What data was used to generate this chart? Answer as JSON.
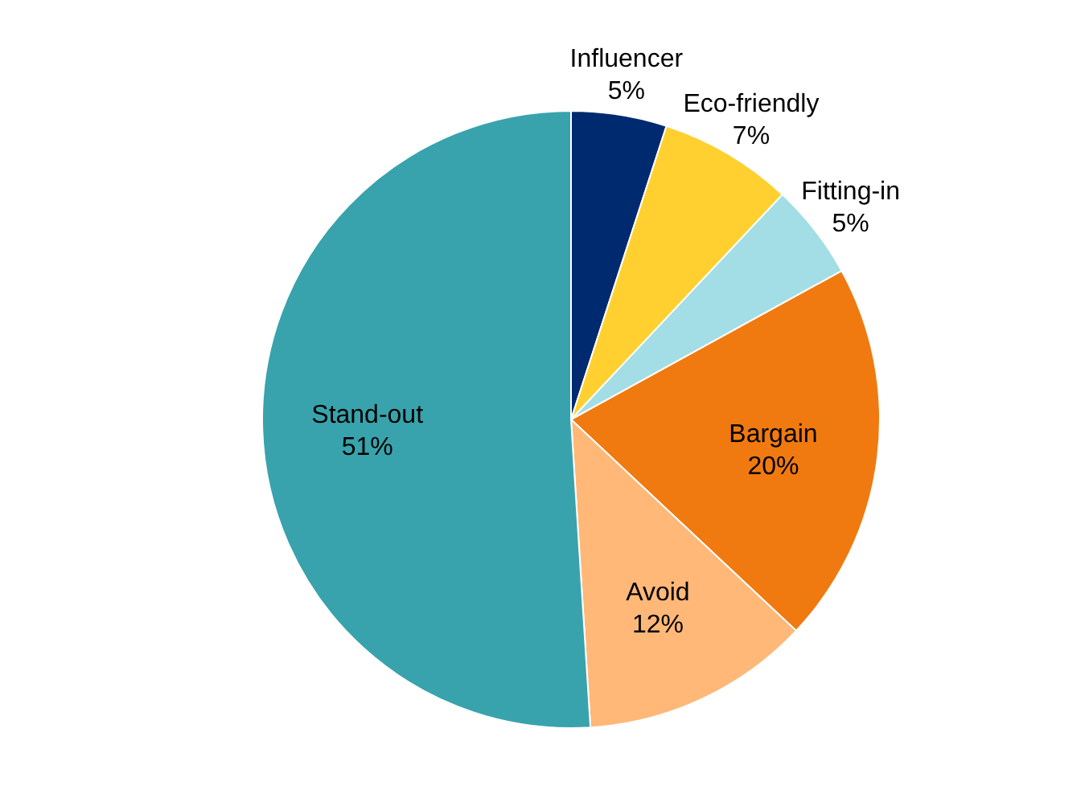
{
  "chart_data": {
    "type": "pie",
    "categories": [
      "Influencer",
      "Eco-friendly",
      "Fitting-in",
      "Bargain",
      "Avoid",
      "Stand-out"
    ],
    "values": [
      5,
      7,
      5,
      20,
      12,
      51
    ],
    "value_labels": [
      "5%",
      "7%",
      "5%",
      "20%",
      "12%",
      "51%"
    ],
    "colors": [
      "#002a70",
      "#ffd02f",
      "#a3dde5",
      "#f07a10",
      "#ffb878",
      "#38a3ac"
    ]
  }
}
